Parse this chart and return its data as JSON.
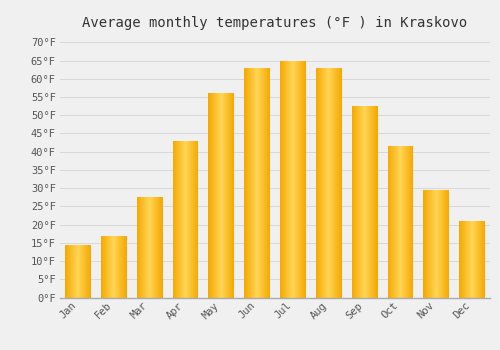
{
  "title": "Average monthly temperatures (°F ) in Kraskovo",
  "months": [
    "Jan",
    "Feb",
    "Mar",
    "Apr",
    "May",
    "Jun",
    "Jul",
    "Aug",
    "Sep",
    "Oct",
    "Nov",
    "Dec"
  ],
  "values": [
    14.5,
    17.0,
    27.5,
    43.0,
    56.0,
    63.0,
    65.0,
    63.0,
    52.5,
    41.5,
    29.5,
    21.0
  ],
  "bar_color_dark": "#F5A800",
  "bar_color_light": "#FFD555",
  "ylim": [
    0,
    72
  ],
  "yticks": [
    0,
    5,
    10,
    15,
    20,
    25,
    30,
    35,
    40,
    45,
    50,
    55,
    60,
    65,
    70
  ],
  "ytick_labels": [
    "0°F",
    "5°F",
    "10°F",
    "15°F",
    "20°F",
    "25°F",
    "30°F",
    "35°F",
    "40°F",
    "45°F",
    "50°F",
    "55°F",
    "60°F",
    "65°F",
    "70°F"
  ],
  "background_color": "#f0f0f0",
  "grid_color": "#d8d8d8",
  "title_fontsize": 10,
  "tick_fontsize": 7.5,
  "font_family": "monospace",
  "bar_width": 0.72
}
